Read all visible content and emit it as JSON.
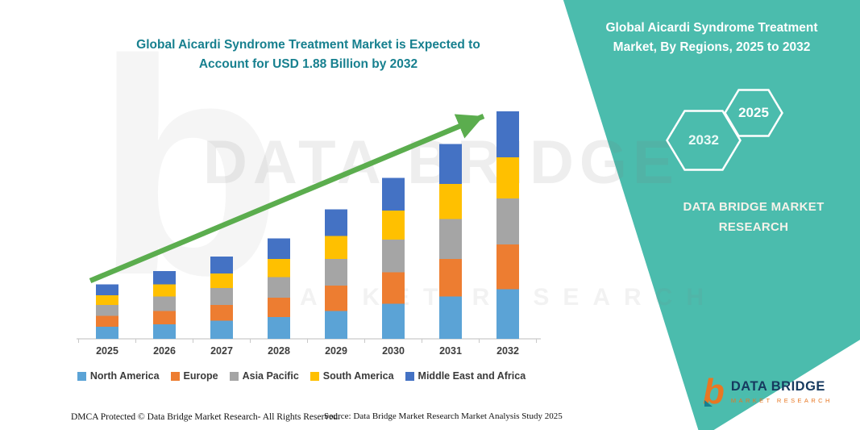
{
  "title": {
    "line1": "Global Aicardi Syndrome Treatment Market is Expected to",
    "line2": "Account for USD 1.88 Billion by 2032",
    "color": "#17808F"
  },
  "side_panel": {
    "heading_line1": "Global Aicardi Syndrome Treatment",
    "heading_line2": "Market, By Regions, 2025 to 2032",
    "hexagon_labels": [
      "2032",
      "2025"
    ],
    "brand_line1": "DATA BRIDGE MARKET",
    "brand_line2": "RESEARCH",
    "accent_color": "#4BBCAD"
  },
  "watermark": {
    "letter": "b",
    "line1": "DATA BRIDGE",
    "line2": "MARKET RESEARCH"
  },
  "footer": {
    "dmca": "DMCA Protected © Data Bridge Market Research-  All Rights Reserved.",
    "source": "Source: Data Bridge Market Research  Market Analysis Study 2025"
  },
  "logo": {
    "glyph": "b",
    "name": "DATA BRIDGE",
    "subtitle": "MARKET RESEARCH"
  },
  "chart_data": {
    "type": "bar",
    "stacked": true,
    "title": "Global Aicardi Syndrome Treatment Market is Expected to Account for USD 1.88 Billion by 2032",
    "unit": "USD Billion",
    "categories": [
      "2025",
      "2026",
      "2027",
      "2028",
      "2029",
      "2030",
      "2031",
      "2032"
    ],
    "series": [
      {
        "name": "North America",
        "color": "#5BA3D6",
        "values": [
          0.1,
          0.12,
          0.15,
          0.18,
          0.23,
          0.29,
          0.35,
          0.41
        ]
      },
      {
        "name": "Europe",
        "color": "#ED7D31",
        "values": [
          0.09,
          0.11,
          0.13,
          0.16,
          0.21,
          0.26,
          0.31,
          0.37
        ]
      },
      {
        "name": "Asia Pacific",
        "color": "#A5A5A5",
        "values": [
          0.09,
          0.12,
          0.14,
          0.17,
          0.22,
          0.27,
          0.33,
          0.38
        ]
      },
      {
        "name": "South America",
        "color": "#FFC000",
        "values": [
          0.08,
          0.1,
          0.12,
          0.15,
          0.19,
          0.24,
          0.29,
          0.34
        ]
      },
      {
        "name": "Middle East and Africa",
        "color": "#4472C4",
        "values": [
          0.09,
          0.11,
          0.14,
          0.17,
          0.22,
          0.27,
          0.33,
          0.38
        ]
      }
    ],
    "totals": [
      0.45,
      0.56,
      0.68,
      0.83,
      1.07,
      1.33,
      1.61,
      1.88
    ],
    "ylim": [
      0,
      2.0
    ],
    "grid": false,
    "legend_position": "bottom",
    "trend_arrow_color": "#5BAD4E"
  }
}
